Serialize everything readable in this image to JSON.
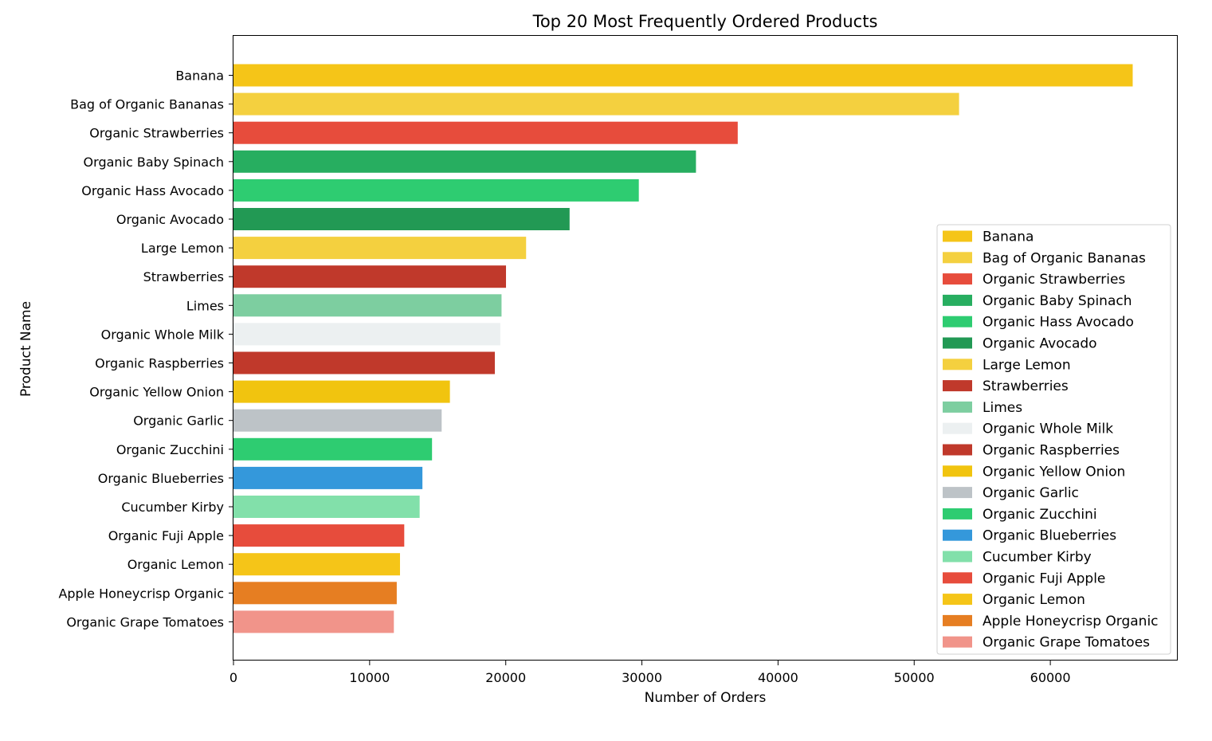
{
  "chart_data": {
    "type": "bar",
    "orientation": "horizontal",
    "title": "Top 20 Most Frequently Ordered Products",
    "xlabel": "Number of Orders",
    "ylabel": "Product Name",
    "xlim": [
      0,
      69300
    ],
    "xticks": [
      0,
      10000,
      20000,
      30000,
      40000,
      50000,
      60000
    ],
    "grid": false,
    "legend_position": "lower-right",
    "categories": [
      "Banana",
      "Bag of Organic Bananas",
      "Organic Strawberries",
      "Organic Baby Spinach",
      "Organic Hass Avocado",
      "Organic Avocado",
      "Large Lemon",
      "Strawberries",
      "Limes",
      "Organic Whole Milk",
      "Organic Raspberries",
      "Organic Yellow Onion",
      "Organic Garlic",
      "Organic Zucchini",
      "Organic Blueberries",
      "Cucumber Kirby",
      "Organic Fuji Apple",
      "Organic Lemon",
      "Apple Honeycrisp Organic",
      "Organic Grape Tomatoes"
    ],
    "values": [
      66050,
      53297,
      37039,
      33971,
      29773,
      24689,
      21495,
      20018,
      19690,
      19600,
      19197,
      15898,
      15292,
      14584,
      13879,
      13675,
      12544,
      12232,
      11993,
      11781
    ],
    "colors": [
      "#f5c518",
      "#f4d03f",
      "#e74c3c",
      "#27ae60",
      "#2ecc71",
      "#229954",
      "#f4d03f",
      "#c0392b",
      "#7dcea0",
      "#ecf0f1",
      "#c0392b",
      "#f1c40f",
      "#bdc3c7",
      "#2ecc71",
      "#3498db",
      "#82e0aa",
      "#e74c3c",
      "#f5c518",
      "#e67e22",
      "#f1948a"
    ]
  }
}
